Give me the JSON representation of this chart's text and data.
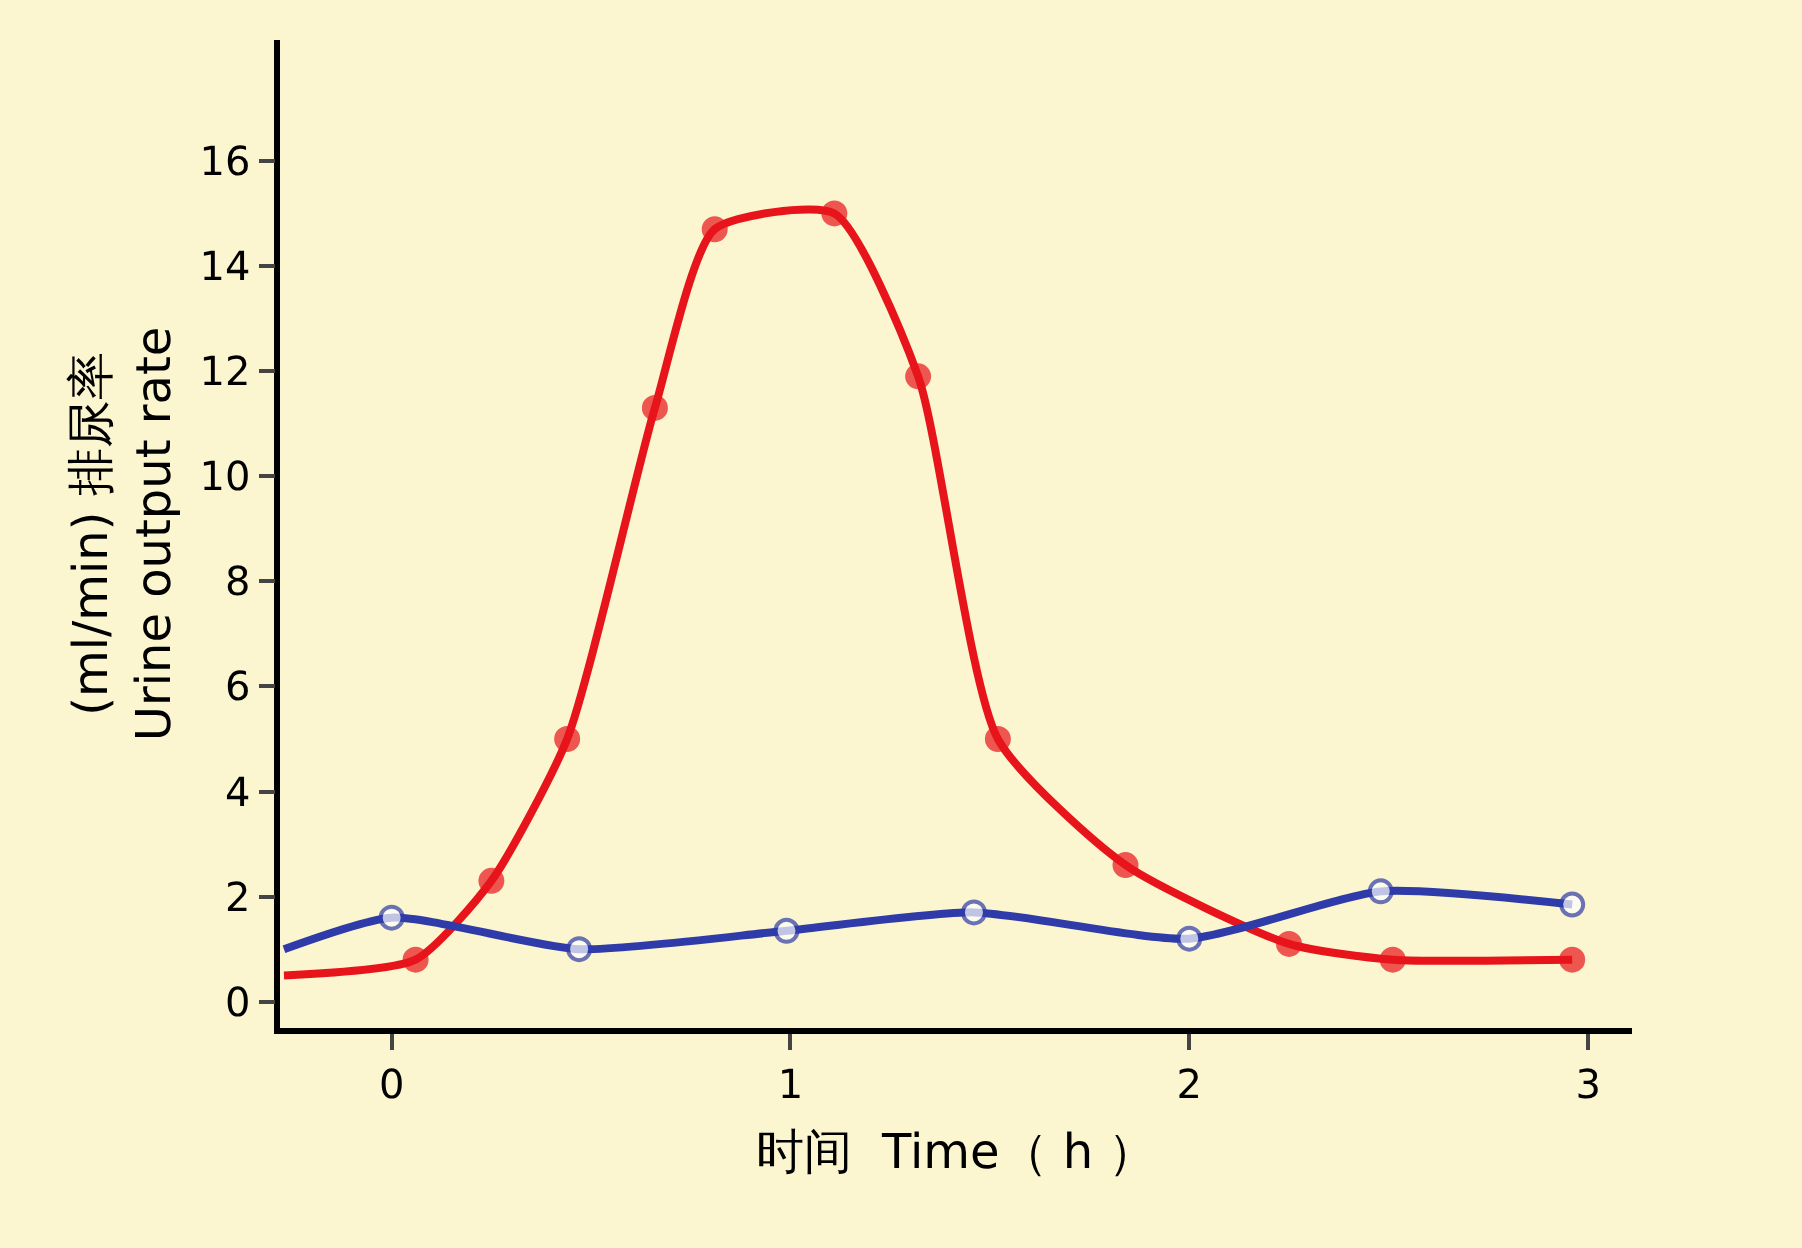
{
  "chart_data": {
    "type": "line",
    "xlabel": "时间  Time（ h ）",
    "ylabel": "(ml/min) 排尿率\nUrine output rate",
    "xlim": [
      -0.28,
      3.11
    ],
    "ylim": [
      -0.5,
      18.3
    ],
    "xticks": [
      0,
      1,
      2,
      3
    ],
    "yticks": [
      0,
      2,
      4,
      6,
      8,
      10,
      12,
      14,
      16
    ],
    "grid": false,
    "marker": "circle",
    "line_style": "solid",
    "series": [
      {
        "color": "#e8141b",
        "x": [
          -0.27,
          0.06,
          0.25,
          0.44,
          0.66,
          0.81,
          1.11,
          1.32,
          1.52,
          1.84,
          2.25,
          2.51,
          2.96
        ],
        "values": [
          0.5,
          0.8,
          2.3,
          5.0,
          11.3,
          14.7,
          15.0,
          11.9,
          5.0,
          2.6,
          1.1,
          0.8,
          0.8
        ]
      },
      {
        "color": "#2e3ba8",
        "x": [
          -0.27,
          0.0,
          0.47,
          0.99,
          1.46,
          2.0,
          2.48,
          2.96
        ],
        "values": [
          1.0,
          1.6,
          1.0,
          1.35,
          1.7,
          1.2,
          2.1,
          1.85
        ]
      }
    ]
  }
}
